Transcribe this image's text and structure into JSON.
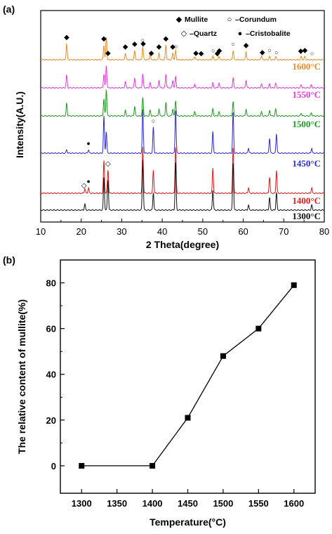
{
  "chart_data": [
    {
      "panel_label": "(a)",
      "type": "line",
      "xlabel": "2 Theta(degree)",
      "ylabel": "Intensity(A.U.)",
      "xlim": [
        10,
        80
      ],
      "x_ticks": [
        10,
        20,
        30,
        40,
        50,
        60,
        70,
        80
      ],
      "y_ticks_shown": false,
      "legend": {
        "position": "top-right",
        "entries": [
          {
            "marker": "◆",
            "label": "Mullite"
          },
          {
            "marker": "○",
            "label": "–Corundum"
          },
          {
            "marker": "◇",
            "label": "–Quartz"
          },
          {
            "marker": "●",
            "label": "–Cristobalite"
          }
        ]
      },
      "series": [
        {
          "name": "1600°C",
          "color": "#f08a24",
          "peaks": [
            [
              16.4,
              0.6
            ],
            [
              25.6,
              0.55
            ],
            [
              26.2,
              0.85
            ],
            [
              30.9,
              0.25
            ],
            [
              33.2,
              0.35
            ],
            [
              35.2,
              0.5
            ],
            [
              37.0,
              0.2
            ],
            [
              39.2,
              0.25
            ],
            [
              40.9,
              0.55
            ],
            [
              42.6,
              0.25
            ],
            [
              43.3,
              0.35
            ],
            [
              48.0,
              0.12
            ],
            [
              52.5,
              0.15
            ],
            [
              54.0,
              0.15
            ],
            [
              57.5,
              0.35
            ],
            [
              60.7,
              0.3
            ],
            [
              64.5,
              0.15
            ],
            [
              66.5,
              0.12
            ],
            [
              68.0,
              0.12
            ],
            [
              74.3,
              0.12
            ],
            [
              75.2,
              0.12
            ]
          ]
        },
        {
          "name": "1550°C",
          "color": "#e838e0",
          "peaks": [
            [
              16.4,
              0.5
            ],
            [
              25.6,
              0.55
            ],
            [
              26.2,
              0.9
            ],
            [
              30.9,
              0.25
            ],
            [
              33.2,
              0.4
            ],
            [
              35.2,
              0.55
            ],
            [
              37.0,
              0.2
            ],
            [
              39.2,
              0.3
            ],
            [
              40.9,
              0.55
            ],
            [
              42.6,
              0.3
            ],
            [
              43.3,
              0.45
            ],
            [
              48.0,
              0.15
            ],
            [
              52.5,
              0.2
            ],
            [
              54.0,
              0.2
            ],
            [
              57.5,
              0.4
            ],
            [
              60.7,
              0.3
            ],
            [
              64.5,
              0.15
            ],
            [
              66.5,
              0.15
            ],
            [
              68.0,
              0.18
            ],
            [
              74.3,
              0.12
            ],
            [
              76.8,
              0.12
            ]
          ]
        },
        {
          "name": "1500°C",
          "color": "#1e9a1e",
          "peaks": [
            [
              16.4,
              0.45
            ],
            [
              25.6,
              0.6
            ],
            [
              26.2,
              0.95
            ],
            [
              30.9,
              0.2
            ],
            [
              33.2,
              0.35
            ],
            [
              35.2,
              0.65
            ],
            [
              37.0,
              0.2
            ],
            [
              39.2,
              0.25
            ],
            [
              40.9,
              0.5
            ],
            [
              42.6,
              0.25
            ],
            [
              43.3,
              0.55
            ],
            [
              48.0,
              0.15
            ],
            [
              52.5,
              0.25
            ],
            [
              54.0,
              0.15
            ],
            [
              57.5,
              0.5
            ],
            [
              60.7,
              0.25
            ],
            [
              64.5,
              0.15
            ],
            [
              66.5,
              0.2
            ],
            [
              68.0,
              0.25
            ],
            [
              74.3,
              0.1
            ],
            [
              76.8,
              0.12
            ]
          ]
        },
        {
          "name": "1450°C",
          "color": "#2b2bd6",
          "peaks": [
            [
              16.4,
              0.08
            ],
            [
              21.8,
              0.08
            ],
            [
              25.6,
              0.85
            ],
            [
              26.2,
              0.5
            ],
            [
              35.2,
              1.0
            ],
            [
              37.8,
              0.6
            ],
            [
              43.3,
              1.0
            ],
            [
              52.5,
              0.5
            ],
            [
              57.5,
              0.95
            ],
            [
              61.3,
              0.12
            ],
            [
              66.5,
              0.35
            ],
            [
              68.2,
              0.45
            ],
            [
              76.9,
              0.12
            ]
          ]
        },
        {
          "name": "1400°C",
          "color": "#e01818",
          "peaks": [
            [
              20.9,
              0.1
            ],
            [
              21.8,
              0.12
            ],
            [
              25.6,
              0.7
            ],
            [
              26.6,
              0.5
            ],
            [
              35.2,
              1.0
            ],
            [
              37.8,
              0.5
            ],
            [
              43.3,
              1.0
            ],
            [
              52.5,
              0.55
            ],
            [
              57.5,
              1.0
            ],
            [
              61.3,
              0.12
            ],
            [
              66.5,
              0.35
            ],
            [
              68.2,
              0.5
            ],
            [
              76.9,
              0.12
            ]
          ]
        },
        {
          "name": "1300°C",
          "color": "#111111",
          "peaks": [
            [
              20.9,
              0.12
            ],
            [
              25.6,
              0.65
            ],
            [
              26.6,
              0.6
            ],
            [
              35.2,
              1.0
            ],
            [
              37.8,
              0.35
            ],
            [
              43.3,
              0.95
            ],
            [
              52.5,
              0.4
            ],
            [
              57.5,
              0.95
            ],
            [
              61.3,
              0.1
            ],
            [
              66.5,
              0.25
            ],
            [
              68.2,
              0.35
            ],
            [
              76.9,
              0.1
            ]
          ]
        }
      ],
      "phase_markers": [
        {
          "symbol": "◆",
          "on": "1600°C",
          "x": [
            16.4,
            25.6,
            26.6,
            30.9,
            33.2,
            35.3,
            37.3,
            39.2,
            40.9,
            42.6,
            48.3,
            49.6,
            53.6,
            54.1,
            60.7,
            64.7,
            74.2,
            75.2
          ]
        },
        {
          "symbol": "○",
          "on": "1600°C",
          "x": [
            25.6,
            35.2,
            43.4,
            52.6,
            57.5,
            66.5,
            68.2,
            77.0
          ]
        },
        {
          "symbol": "●",
          "on": "1450°C",
          "x": [
            21.8
          ]
        },
        {
          "symbol": "○",
          "on": "1450°C",
          "x": [
            37.8
          ]
        },
        {
          "symbol": "◇",
          "on": "1400°C",
          "x": [
            20.7,
            26.6
          ]
        },
        {
          "symbol": "●",
          "on": "1400°C",
          "x": [
            21.8
          ]
        }
      ]
    },
    {
      "panel_label": "(b)",
      "type": "line",
      "xlabel": "Temperature(°C)",
      "ylabel": "The relative content of mullite(%)",
      "xlim": [
        1270,
        1630
      ],
      "ylim": [
        -12,
        90
      ],
      "x_ticks": [
        1300,
        1350,
        1400,
        1450,
        1500,
        1550,
        1600
      ],
      "y_ticks": [
        0,
        20,
        40,
        60,
        80
      ],
      "marker": "square",
      "color": "#000000",
      "x": [
        1300,
        1400,
        1450,
        1500,
        1550,
        1600
      ],
      "y": [
        0,
        0,
        21,
        48,
        60,
        79
      ]
    }
  ]
}
